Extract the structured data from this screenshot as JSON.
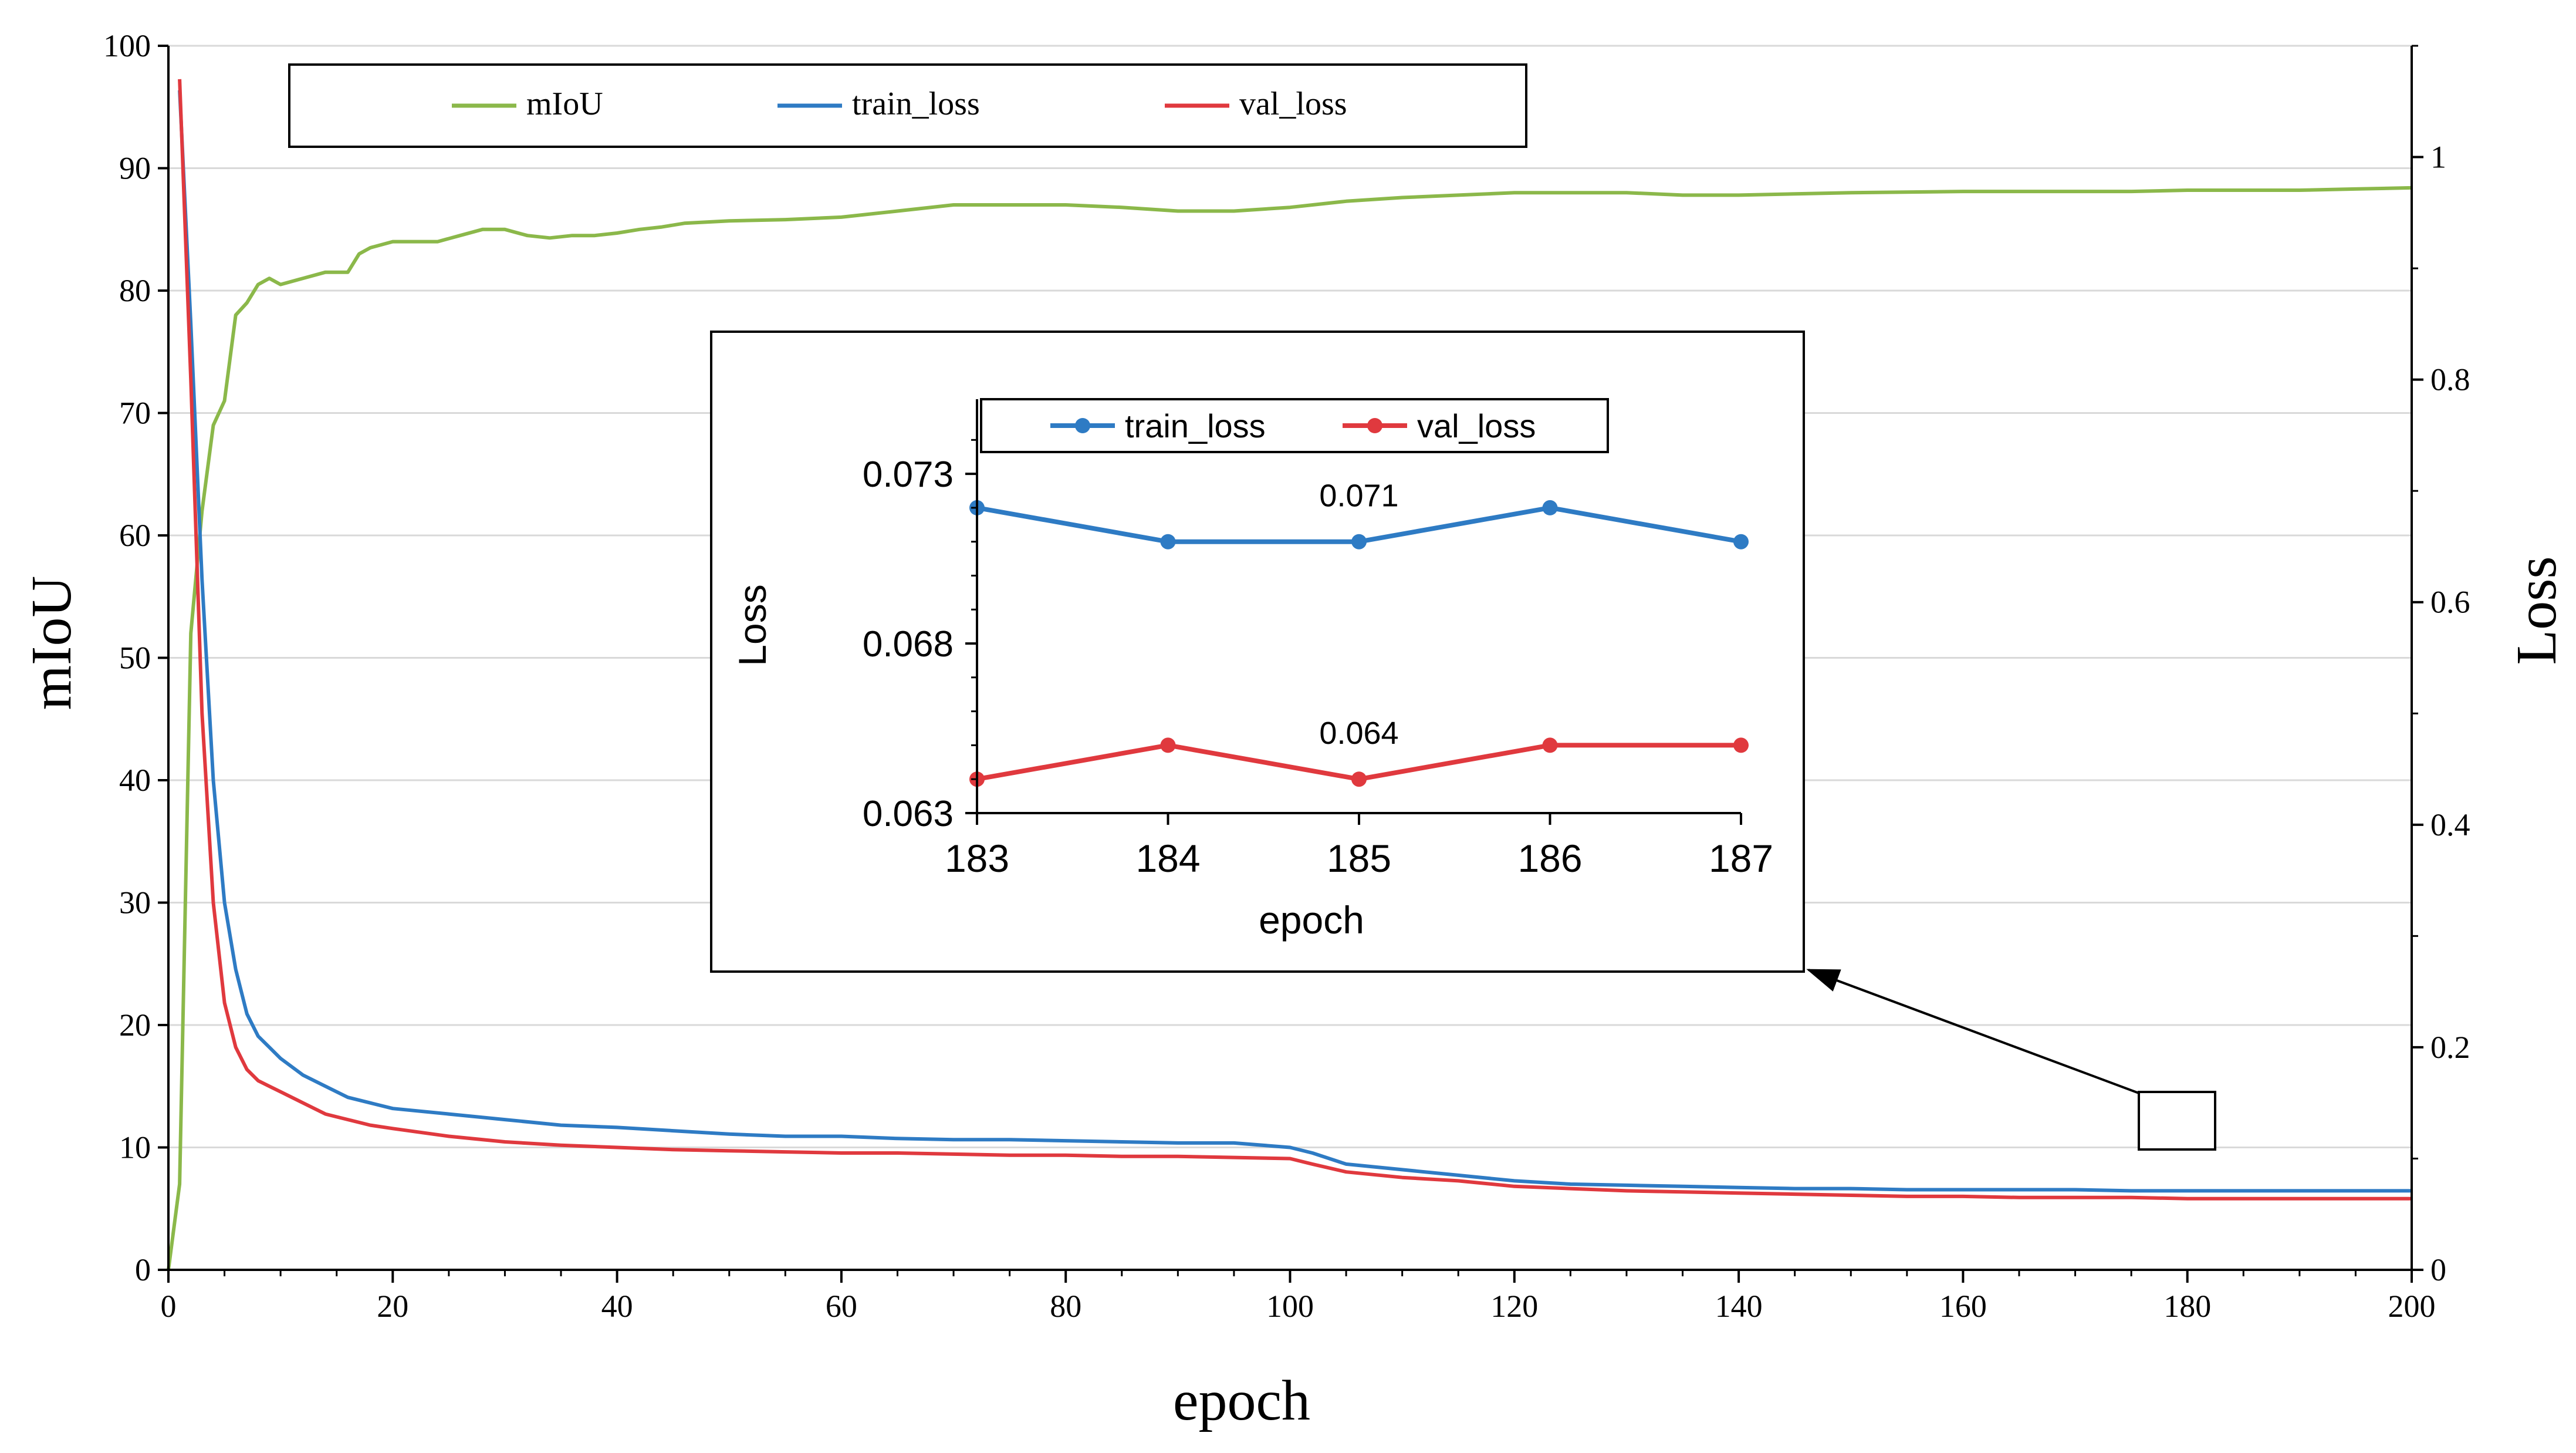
{
  "colors": {
    "miou": "#8BB84A",
    "train_loss": "#2E7BC4",
    "val_loss": "#E0393E",
    "grid": "#D9D9D9",
    "axis": "#000000"
  },
  "chart_data": [
    {
      "id": "main",
      "type": "line",
      "xlabel": "epoch",
      "ylabel_left": "mIoU",
      "ylabel_right": "Loss",
      "xlim": [
        0,
        200
      ],
      "ylim_left": [
        0,
        100
      ],
      "ylim_right": [
        0,
        1.1
      ],
      "x_ticks": [
        0,
        20,
        40,
        60,
        80,
        100,
        120,
        140,
        160,
        180,
        200
      ],
      "y_ticks_left": [
        0,
        10,
        20,
        30,
        40,
        50,
        60,
        70,
        80,
        90,
        100
      ],
      "y_ticks_right": [
        0,
        0.2,
        0.4,
        0.6,
        0.8,
        1
      ],
      "y_tick_labels_right": [
        "0",
        "0.2",
        "0.4",
        "0.6",
        "0.8",
        "1"
      ],
      "legend": [
        "mIoU",
        "train_loss",
        "val_loss"
      ],
      "legend_position": "top-left",
      "series": [
        {
          "name": "mIoU",
          "axis": "left",
          "color_key": "miou",
          "x": [
            0,
            1,
            2,
            3,
            4,
            5,
            6,
            7,
            8,
            9,
            10,
            12,
            14,
            16,
            17,
            18,
            20,
            22,
            24,
            26,
            28,
            30,
            32,
            34,
            36,
            38,
            40,
            42,
            44,
            46,
            48,
            50,
            55,
            60,
            65,
            70,
            75,
            80,
            85,
            90,
            95,
            100,
            105,
            110,
            115,
            120,
            125,
            130,
            135,
            140,
            145,
            150,
            160,
            165,
            170,
            175,
            180,
            185,
            190,
            195,
            200
          ],
          "y": [
            0,
            7,
            52,
            62,
            69,
            71,
            78,
            79,
            80.5,
            81,
            80.5,
            81,
            81.5,
            81.5,
            83,
            83.5,
            84,
            84,
            84,
            84.5,
            85,
            85,
            84.5,
            84.3,
            84.5,
            84.5,
            84.7,
            85,
            85.2,
            85.5,
            85.6,
            85.7,
            85.8,
            86,
            86.5,
            87,
            87,
            87,
            86.8,
            86.5,
            86.5,
            86.8,
            87.3,
            87.6,
            87.8,
            88,
            88,
            88,
            87.8,
            87.8,
            87.9,
            88,
            88.1,
            88.1,
            88.1,
            88.1,
            88.2,
            88.2,
            88.2,
            88.3,
            88.4
          ]
        },
        {
          "name": "train_loss",
          "axis": "right",
          "color_key": "train_loss",
          "x": [
            1,
            2,
            3,
            4,
            5,
            6,
            7,
            8,
            9,
            10,
            12,
            14,
            16,
            18,
            20,
            25,
            30,
            35,
            40,
            45,
            50,
            55,
            60,
            65,
            70,
            75,
            80,
            85,
            90,
            95,
            100,
            102,
            105,
            110,
            115,
            120,
            125,
            130,
            135,
            140,
            145,
            150,
            155,
            160,
            165,
            170,
            175,
            180,
            185,
            190,
            195,
            200
          ],
          "y": [
            1.06,
            0.85,
            0.62,
            0.44,
            0.33,
            0.27,
            0.23,
            0.21,
            0.2,
            0.19,
            0.175,
            0.165,
            0.155,
            0.15,
            0.145,
            0.14,
            0.135,
            0.13,
            0.128,
            0.125,
            0.122,
            0.12,
            0.12,
            0.118,
            0.117,
            0.117,
            0.116,
            0.115,
            0.114,
            0.114,
            0.11,
            0.105,
            0.095,
            0.09,
            0.085,
            0.08,
            0.077,
            0.076,
            0.075,
            0.074,
            0.073,
            0.073,
            0.072,
            0.072,
            0.072,
            0.072,
            0.071,
            0.071,
            0.071,
            0.071,
            0.071,
            0.071
          ]
        },
        {
          "name": "val_loss",
          "axis": "right",
          "color_key": "val_loss",
          "x": [
            1,
            2,
            3,
            4,
            5,
            6,
            7,
            8,
            9,
            10,
            12,
            14,
            16,
            18,
            20,
            25,
            30,
            35,
            40,
            45,
            50,
            55,
            60,
            65,
            70,
            75,
            80,
            85,
            90,
            95,
            100,
            102,
            105,
            110,
            115,
            120,
            125,
            130,
            135,
            140,
            145,
            150,
            155,
            160,
            165,
            170,
            175,
            180,
            185,
            190,
            195,
            200
          ],
          "y": [
            1.07,
            0.8,
            0.5,
            0.33,
            0.24,
            0.2,
            0.18,
            0.17,
            0.165,
            0.16,
            0.15,
            0.14,
            0.135,
            0.13,
            0.127,
            0.12,
            0.115,
            0.112,
            0.11,
            0.108,
            0.107,
            0.106,
            0.105,
            0.105,
            0.104,
            0.103,
            0.103,
            0.102,
            0.102,
            0.101,
            0.1,
            0.095,
            0.088,
            0.083,
            0.08,
            0.075,
            0.073,
            0.071,
            0.07,
            0.069,
            0.068,
            0.067,
            0.066,
            0.066,
            0.065,
            0.065,
            0.065,
            0.064,
            0.064,
            0.064,
            0.064,
            0.064
          ]
        }
      ],
      "zoom_box_caption": ""
    },
    {
      "id": "inset",
      "type": "line",
      "xlabel": "epoch",
      "ylabel": "Loss",
      "xlim": [
        183,
        187
      ],
      "ylim": [
        0.063,
        0.0752
      ],
      "x_ticks": [
        183,
        184,
        185,
        186,
        187
      ],
      "y_ticks": [
        0.063,
        0.068,
        0.073
      ],
      "y_tick_labels": [
        "0.063",
        "0.068",
        "0.073"
      ],
      "legend": [
        "train_loss",
        "val_loss"
      ],
      "legend_position": "top",
      "series": [
        {
          "name": "train_loss",
          "color_key": "train_loss",
          "x": [
            183,
            184,
            185,
            186,
            187
          ],
          "y": [
            0.072,
            0.071,
            0.071,
            0.072,
            0.071
          ]
        },
        {
          "name": "val_loss",
          "color_key": "val_loss",
          "x": [
            183,
            184,
            185,
            186,
            187
          ],
          "y": [
            0.064,
            0.065,
            0.064,
            0.065,
            0.065
          ]
        }
      ],
      "annotations": [
        {
          "text": "0.071",
          "x": 185,
          "y": 0.071
        },
        {
          "text": "0.064",
          "x": 185,
          "y": 0.064
        }
      ]
    }
  ]
}
